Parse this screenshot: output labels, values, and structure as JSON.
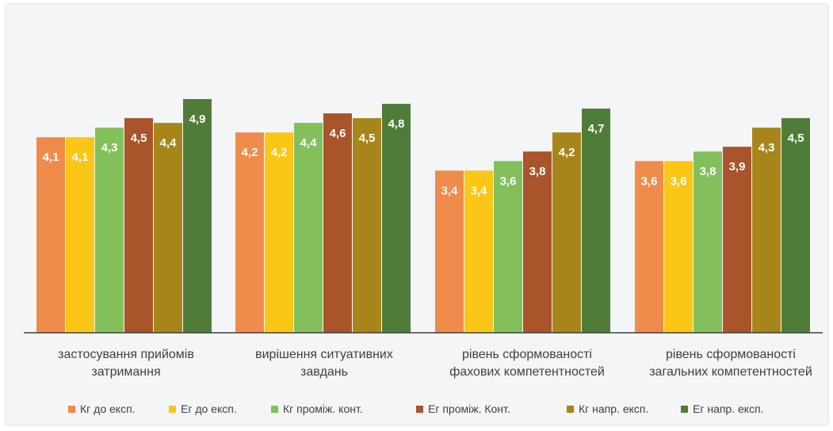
{
  "chart_data": {
    "type": "bar",
    "title": "",
    "xlabel": "",
    "ylabel": "",
    "ylim": [
      0,
      5.2
    ],
    "grid": false,
    "legend_position": "bottom",
    "categories": [
      [
        "застосування прийомів",
        "затримання"
      ],
      [
        "вирішення ситуативних",
        "завдань"
      ],
      [
        "рівень сформованості",
        "фахових компетентностей"
      ],
      [
        "рівень сформованості",
        "загальних компетентностей"
      ]
    ],
    "series": [
      {
        "name": "Кг до експ.",
        "color": "#ef8c4b",
        "values": [
          4.1,
          4.2,
          3.4,
          3.6
        ],
        "labels": [
          "4,1",
          "4,2",
          "3,4",
          "3,6"
        ]
      },
      {
        "name": "Ег до експ.",
        "color": "#fcc617",
        "values": [
          4.1,
          4.2,
          3.4,
          3.6
        ],
        "labels": [
          "4,1",
          "4,2",
          "3,4",
          "3,6"
        ]
      },
      {
        "name": "Кг проміж. конт.",
        "color": "#83c05c",
        "values": [
          4.3,
          4.4,
          3.6,
          3.8
        ],
        "labels": [
          "4,3",
          "4,4",
          "3,6",
          "3,8"
        ]
      },
      {
        "name": "Ег проміж. Конт.",
        "color": "#a9542a",
        "values": [
          4.5,
          4.6,
          3.8,
          3.9
        ],
        "labels": [
          "4,5",
          "4,6",
          "3,8",
          "3,9"
        ]
      },
      {
        "name": "Кг напр. експ.",
        "color": "#a8851a",
        "values": [
          4.4,
          4.5,
          4.2,
          4.3
        ],
        "labels": [
          "4,4",
          "4,5",
          "4,2",
          "4,3"
        ]
      },
      {
        "name": "Ег напр. експ.",
        "color": "#4f7d39",
        "values": [
          4.9,
          4.8,
          4.7,
          4.5
        ],
        "labels": [
          "4,9",
          "4,8",
          "4,7",
          "4,5"
        ]
      }
    ]
  }
}
